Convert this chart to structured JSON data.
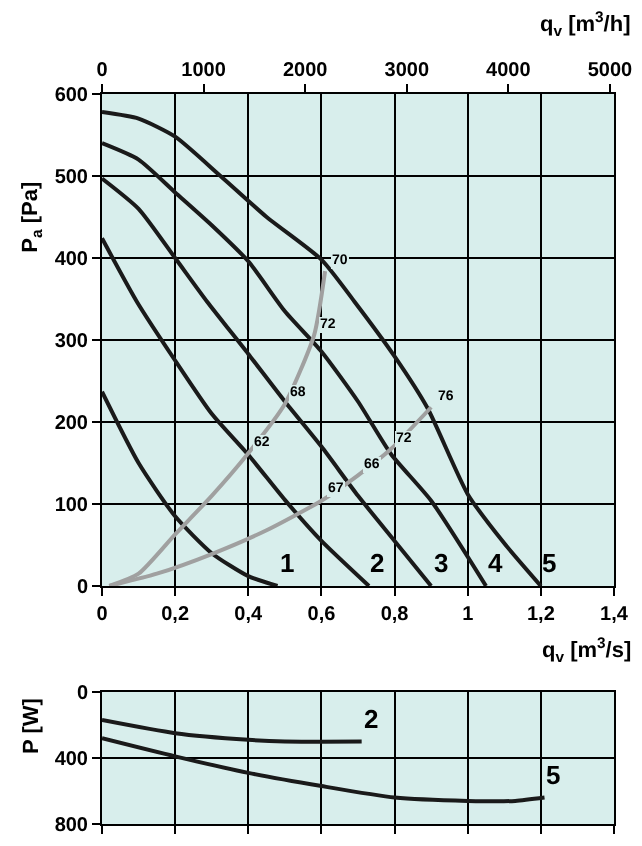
{
  "chart_data": [
    {
      "type": "line",
      "xlabel": "q$_{v}$ [m$^{3}$/s]",
      "ylabel": "P$_{a}$ [Pa]",
      "x2label": "q$_{v}$ [m$^{3}$/h]",
      "xlim": [
        0,
        1.4
      ],
      "ylim": [
        0,
        600
      ],
      "x2lim": [
        0,
        5040
      ],
      "xticks": [
        0,
        {
          "value": 0.2,
          "label": "0,2"
        },
        {
          "value": 0.4,
          "label": "0,4"
        },
        {
          "value": 0.6,
          "label": "0,6"
        },
        {
          "value": 0.8,
          "label": "0,8"
        },
        1,
        {
          "value": 1.2,
          "label": "1,2"
        },
        {
          "value": 1.4,
          "label": "1,4"
        }
      ],
      "yticks": [
        0,
        100,
        200,
        300,
        400,
        500,
        600
      ],
      "x2ticks": [
        0,
        1000,
        2000,
        3000,
        4000,
        5000
      ],
      "grid": true,
      "legend": false,
      "series": [
        {
          "name": "1",
          "color": "#1a1a1a",
          "x": [
            0,
            0.1,
            0.2,
            0.3,
            0.4,
            0.48
          ],
          "values": [
            237,
            150,
            85,
            40,
            12,
            0
          ]
        },
        {
          "name": "2",
          "color": "#1a1a1a",
          "x": [
            0,
            0.095,
            0.2,
            0.3,
            0.4,
            0.5,
            0.6,
            0.73
          ],
          "values": [
            424,
            347,
            275,
            210,
            160,
            105,
            55,
            0
          ]
        },
        {
          "name": "3",
          "color": "#1a1a1a",
          "x": [
            0,
            0.1,
            0.2,
            0.287,
            0.4,
            0.5,
            0.6,
            0.7,
            0.8,
            0.9
          ],
          "values": [
            497,
            460,
            400,
            347,
            283,
            225,
            170,
            110,
            55,
            0
          ]
        },
        {
          "name": "4",
          "color": "#1a1a1a",
          "x": [
            0,
            0.1,
            0.2,
            0.3,
            0.4,
            0.5,
            0.6,
            0.7,
            0.79,
            0.9,
            1.05
          ],
          "values": [
            540,
            520,
            480,
            440,
            396,
            335,
            286,
            225,
            161,
            104,
            0
          ]
        },
        {
          "name": "5",
          "color": "#1a1a1a",
          "x": [
            0,
            0.1,
            0.2,
            0.324,
            0.45,
            0.6,
            0.69,
            0.8,
            0.89,
            1.0,
            1.1,
            1.2
          ],
          "values": [
            578,
            570,
            548,
            500,
            450,
            398,
            347,
            280,
            217,
            112,
            52,
            0
          ]
        },
        {
          "color": "#a0a0a0",
          "x": [
            0.02,
            0.1,
            0.2,
            0.3,
            0.4,
            0.5,
            0.58,
            0.61
          ],
          "values": [
            0,
            15,
            63,
            110,
            162,
            222,
            306,
            384
          ]
        },
        {
          "color": "#a0a0a0",
          "x": [
            0.02,
            0.15,
            0.3,
            0.45,
            0.6,
            0.7,
            0.79,
            0.9
          ],
          "values": [
            0,
            15,
            39,
            68,
            104,
            135,
            167,
            218
          ]
        }
      ],
      "annotations": [
        {
          "text": "70",
          "x": 0.61,
          "y": 384
        },
        {
          "text": "72",
          "x": 0.58,
          "y": 306
        },
        {
          "text": "68",
          "x": 0.5,
          "y": 222
        },
        {
          "text": "62",
          "x": 0.4,
          "y": 162
        },
        {
          "text": "76",
          "x": 0.9,
          "y": 218
        },
        {
          "text": "72",
          "x": 0.79,
          "y": 167
        },
        {
          "text": "66",
          "x": 0.7,
          "y": 135
        },
        {
          "text": "67",
          "x": 0.6,
          "y": 104
        }
      ]
    },
    {
      "type": "line",
      "ylabel": "P [W]",
      "xlim": [
        0,
        1.4
      ],
      "ylim": [
        800,
        0
      ],
      "xticks": [
        0,
        0.2,
        0.4,
        0.6,
        0.8,
        1,
        1.2,
        1.4
      ],
      "yticks": [
        0,
        400,
        800
      ],
      "tick_labels": "y",
      "grid": true,
      "legend": false,
      "series": [
        {
          "name": "2",
          "color": "#1a1a1a",
          "x": [
            0,
            0.2,
            0.4,
            0.5,
            0.71
          ],
          "values": [
            170,
            250,
            290,
            300,
            300
          ]
        },
        {
          "name": "5",
          "color": "#1a1a1a",
          "x": [
            0,
            0.2,
            0.4,
            0.6,
            0.8,
            1.0,
            1.13,
            1.21
          ],
          "values": [
            280,
            390,
            490,
            570,
            640,
            660,
            660,
            640
          ]
        }
      ]
    }
  ]
}
